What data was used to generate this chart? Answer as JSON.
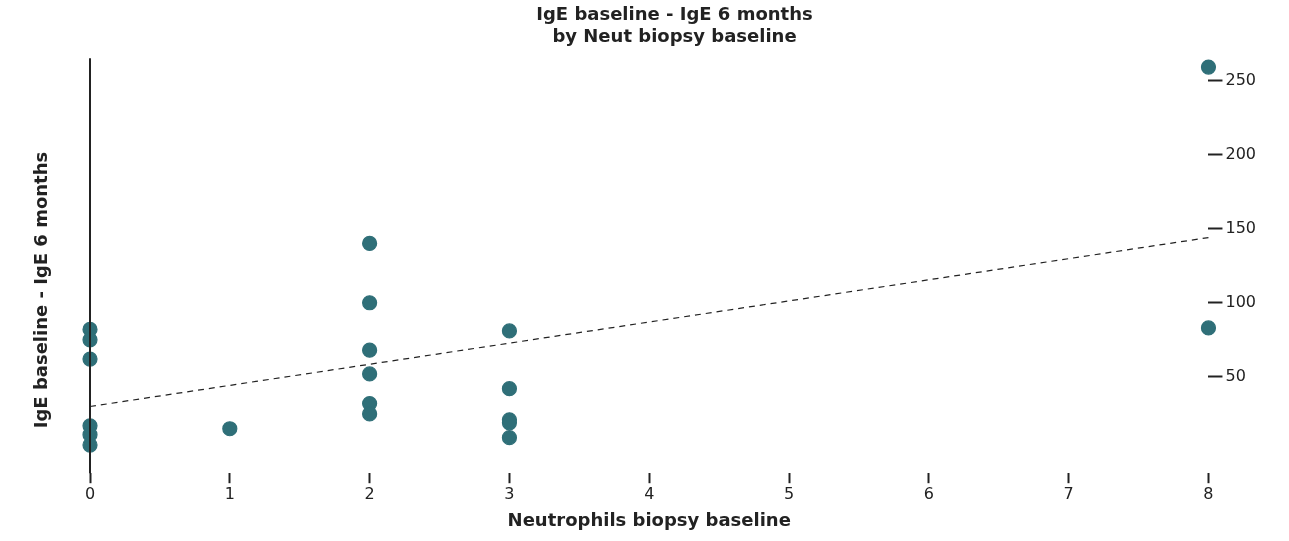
{
  "chart_data": {
    "type": "scatter",
    "title": "IgE baseline - IgE 6 months\nby Neut biopsy baseline",
    "xlabel": "Neutrophils biopsy baseline",
    "ylabel": "IgE baseline - IgE 6 months",
    "xlim": [
      0,
      8
    ],
    "xticks": [
      0,
      1,
      2,
      3,
      4,
      5,
      6,
      7,
      8
    ],
    "ylim": [
      -15,
      265
    ],
    "yticks": [
      50,
      100,
      150,
      200,
      250
    ],
    "grid": false,
    "legend": false,
    "marker": "circle",
    "ref_lines": [
      {
        "axis": "x",
        "value": 0,
        "color": "#222222"
      }
    ],
    "series": [
      {
        "color": "#2f6f78",
        "x": [
          0,
          0,
          0,
          0,
          0,
          0,
          1,
          2,
          2,
          2,
          2,
          2,
          2,
          3,
          3,
          3,
          3,
          3,
          8,
          8
        ],
        "values": [
          82,
          75,
          62,
          17,
          11,
          4,
          15,
          140,
          100,
          68,
          52,
          32,
          25,
          81,
          42,
          21,
          19,
          9,
          259,
          83
        ]
      },
      {
        "type": "line",
        "color": "#222222",
        "line_style": "dashed",
        "marker": "none",
        "x": [
          0,
          8
        ],
        "values": [
          30,
          144
        ]
      }
    ]
  }
}
